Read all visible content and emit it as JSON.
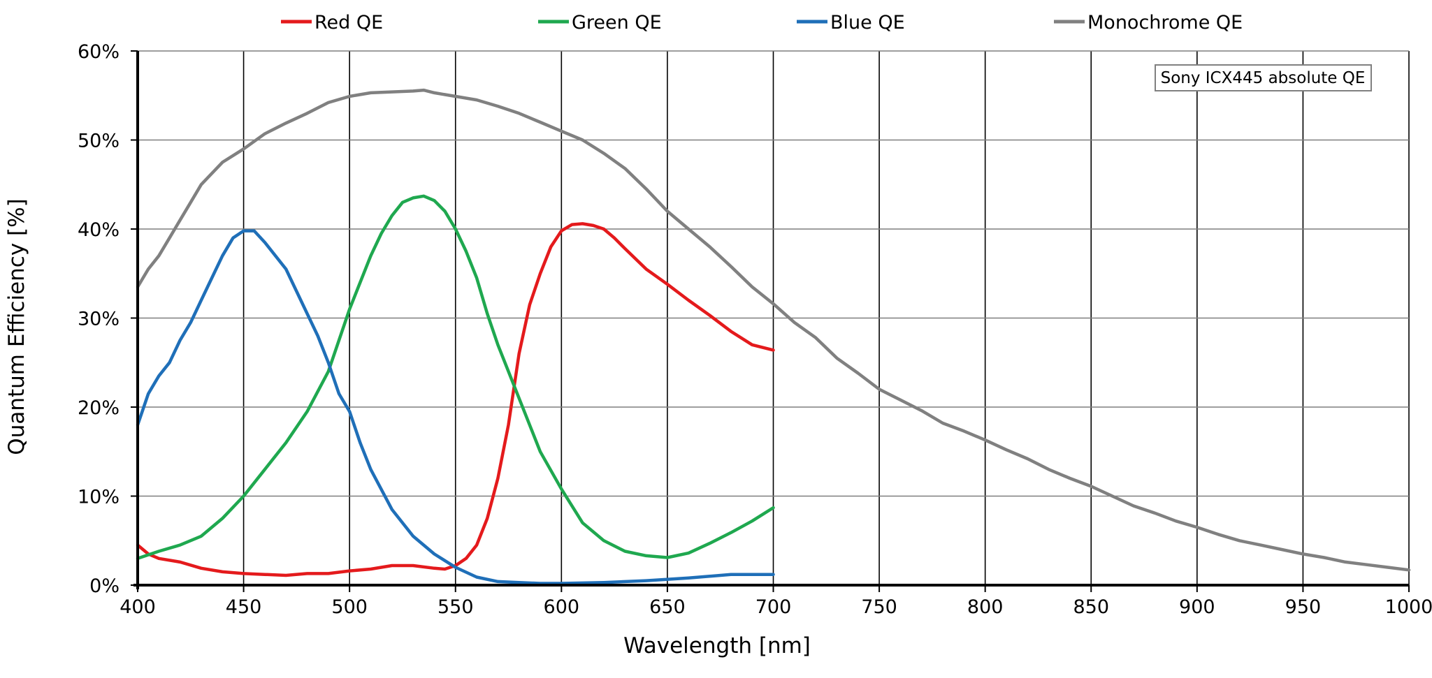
{
  "chart_data": {
    "type": "line",
    "xlabel": "Wavelength [nm]",
    "ylabel": "Quantum Efficiency [%]",
    "xlim": [
      400,
      1000
    ],
    "ylim": [
      0,
      60
    ],
    "x_ticks": [
      400,
      450,
      500,
      550,
      600,
      650,
      700,
      750,
      800,
      850,
      900,
      950,
      1000
    ],
    "y_ticks": [
      0,
      10,
      20,
      30,
      40,
      50,
      60
    ],
    "y_tick_suffix": "%",
    "grid": true,
    "legend_position": "top",
    "annotation": "Sony ICX445 absolute QE",
    "series": [
      {
        "name": "Red QE",
        "color": "#e41a1c",
        "points": [
          [
            400,
            4.5
          ],
          [
            405,
            3.5
          ],
          [
            410,
            3.0
          ],
          [
            420,
            2.6
          ],
          [
            430,
            1.9
          ],
          [
            440,
            1.5
          ],
          [
            450,
            1.3
          ],
          [
            460,
            1.2
          ],
          [
            470,
            1.1
          ],
          [
            480,
            1.3
          ],
          [
            490,
            1.3
          ],
          [
            500,
            1.6
          ],
          [
            510,
            1.8
          ],
          [
            520,
            2.2
          ],
          [
            530,
            2.2
          ],
          [
            540,
            1.9
          ],
          [
            545,
            1.8
          ],
          [
            550,
            2.2
          ],
          [
            555,
            3.0
          ],
          [
            560,
            4.5
          ],
          [
            565,
            7.5
          ],
          [
            570,
            12.0
          ],
          [
            575,
            18.0
          ],
          [
            580,
            26.0
          ],
          [
            585,
            31.5
          ],
          [
            590,
            35.0
          ],
          [
            595,
            38.0
          ],
          [
            600,
            39.8
          ],
          [
            605,
            40.5
          ],
          [
            610,
            40.6
          ],
          [
            615,
            40.4
          ],
          [
            620,
            40.0
          ],
          [
            625,
            39.0
          ],
          [
            630,
            37.8
          ],
          [
            640,
            35.5
          ],
          [
            650,
            33.8
          ],
          [
            660,
            32.0
          ],
          [
            670,
            30.3
          ],
          [
            680,
            28.5
          ],
          [
            690,
            27.0
          ],
          [
            700,
            26.4
          ]
        ]
      },
      {
        "name": "Green QE",
        "color": "#1fa84f",
        "points": [
          [
            400,
            3.0
          ],
          [
            410,
            3.8
          ],
          [
            420,
            4.5
          ],
          [
            430,
            5.5
          ],
          [
            440,
            7.5
          ],
          [
            450,
            10.0
          ],
          [
            460,
            13.0
          ],
          [
            470,
            16.0
          ],
          [
            480,
            19.5
          ],
          [
            490,
            24.0
          ],
          [
            495,
            27.5
          ],
          [
            500,
            31.0
          ],
          [
            510,
            37.0
          ],
          [
            515,
            39.5
          ],
          [
            520,
            41.5
          ],
          [
            525,
            43.0
          ],
          [
            530,
            43.5
          ],
          [
            535,
            43.7
          ],
          [
            540,
            43.2
          ],
          [
            545,
            42.0
          ],
          [
            550,
            40.0
          ],
          [
            555,
            37.5
          ],
          [
            560,
            34.5
          ],
          [
            565,
            30.5
          ],
          [
            570,
            27.0
          ],
          [
            580,
            21.0
          ],
          [
            590,
            15.0
          ],
          [
            600,
            10.8
          ],
          [
            610,
            7.0
          ],
          [
            620,
            5.0
          ],
          [
            630,
            3.8
          ],
          [
            640,
            3.3
          ],
          [
            650,
            3.1
          ],
          [
            660,
            3.6
          ],
          [
            670,
            4.7
          ],
          [
            680,
            5.9
          ],
          [
            690,
            7.2
          ],
          [
            700,
            8.7
          ]
        ]
      },
      {
        "name": "Blue QE",
        "color": "#1f6fb8",
        "points": [
          [
            400,
            18.0
          ],
          [
            405,
            21.5
          ],
          [
            410,
            23.5
          ],
          [
            415,
            25.0
          ],
          [
            420,
            27.5
          ],
          [
            425,
            29.5
          ],
          [
            430,
            32.0
          ],
          [
            435,
            34.5
          ],
          [
            440,
            37.0
          ],
          [
            445,
            39.0
          ],
          [
            450,
            39.8
          ],
          [
            455,
            39.8
          ],
          [
            460,
            38.5
          ],
          [
            470,
            35.5
          ],
          [
            480,
            30.5
          ],
          [
            485,
            28.0
          ],
          [
            490,
            25.0
          ],
          [
            495,
            21.5
          ],
          [
            500,
            19.5
          ],
          [
            505,
            16.0
          ],
          [
            510,
            13.0
          ],
          [
            520,
            8.5
          ],
          [
            530,
            5.5
          ],
          [
            540,
            3.5
          ],
          [
            550,
            2.0
          ],
          [
            560,
            0.9
          ],
          [
            570,
            0.4
          ],
          [
            580,
            0.3
          ],
          [
            590,
            0.2
          ],
          [
            600,
            0.2
          ],
          [
            620,
            0.3
          ],
          [
            640,
            0.5
          ],
          [
            660,
            0.8
          ],
          [
            680,
            1.2
          ],
          [
            700,
            1.2
          ]
        ]
      },
      {
        "name": "Monochrome QE",
        "color": "#808080",
        "points": [
          [
            400,
            33.5
          ],
          [
            405,
            35.5
          ],
          [
            410,
            37.0
          ],
          [
            415,
            39.0
          ],
          [
            420,
            41.0
          ],
          [
            425,
            43.0
          ],
          [
            430,
            45.0
          ],
          [
            440,
            47.5
          ],
          [
            450,
            49.0
          ],
          [
            460,
            50.7
          ],
          [
            470,
            51.9
          ],
          [
            480,
            53.0
          ],
          [
            490,
            54.2
          ],
          [
            500,
            54.9
          ],
          [
            510,
            55.3
          ],
          [
            520,
            55.4
          ],
          [
            530,
            55.5
          ],
          [
            535,
            55.6
          ],
          [
            540,
            55.3
          ],
          [
            550,
            54.9
          ],
          [
            560,
            54.5
          ],
          [
            570,
            53.8
          ],
          [
            580,
            53.0
          ],
          [
            590,
            52.0
          ],
          [
            600,
            51.0
          ],
          [
            610,
            50.0
          ],
          [
            620,
            48.5
          ],
          [
            630,
            46.8
          ],
          [
            640,
            44.5
          ],
          [
            650,
            42.0
          ],
          [
            660,
            40.0
          ],
          [
            670,
            38.0
          ],
          [
            680,
            35.8
          ],
          [
            690,
            33.5
          ],
          [
            700,
            31.6
          ],
          [
            710,
            29.5
          ],
          [
            720,
            27.8
          ],
          [
            730,
            25.5
          ],
          [
            740,
            23.8
          ],
          [
            750,
            22.0
          ],
          [
            760,
            20.8
          ],
          [
            770,
            19.6
          ],
          [
            780,
            18.2
          ],
          [
            790,
            17.3
          ],
          [
            800,
            16.3
          ],
          [
            810,
            15.2
          ],
          [
            820,
            14.2
          ],
          [
            830,
            13.0
          ],
          [
            840,
            12.0
          ],
          [
            850,
            11.1
          ],
          [
            860,
            10.0
          ],
          [
            870,
            8.9
          ],
          [
            880,
            8.1
          ],
          [
            890,
            7.2
          ],
          [
            900,
            6.5
          ],
          [
            910,
            5.7
          ],
          [
            920,
            5.0
          ],
          [
            930,
            4.5
          ],
          [
            940,
            4.0
          ],
          [
            950,
            3.5
          ],
          [
            960,
            3.1
          ],
          [
            970,
            2.6
          ],
          [
            980,
            2.3
          ],
          [
            990,
            2.0
          ],
          [
            1000,
            1.7
          ]
        ]
      }
    ]
  }
}
